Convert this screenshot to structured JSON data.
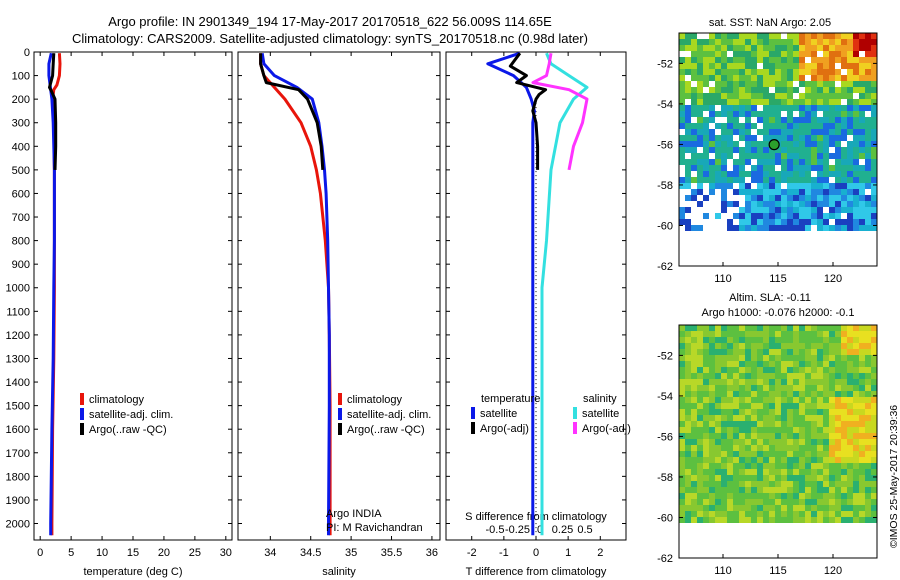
{
  "titles": {
    "line1": "Argo profile: IN 2901349_194 17-May-2017 20170518_622 56.009S 114.65E",
    "line2": "Climatology: CARS2009. Satellite-adjusted climatology: synTS_20170518.nc (0.98d later)"
  },
  "colors": {
    "climatology": "#e8150b",
    "satellite": "#0b18e8",
    "argo": "#000000",
    "sal_satellite": "#33e0e0",
    "sal_argo": "#ff33ff"
  },
  "chart_data": [
    {
      "type": "line",
      "id": "temperature",
      "xlabel": "temperature (deg C)",
      "ylabel": "",
      "xlim": [
        -1,
        31
      ],
      "ylim": [
        2070,
        0
      ],
      "xticks": [
        0,
        5,
        10,
        15,
        20,
        25,
        30
      ],
      "yticks": [
        0,
        100,
        200,
        300,
        400,
        500,
        600,
        700,
        800,
        900,
        1000,
        1100,
        1200,
        1300,
        1400,
        1500,
        1600,
        1700,
        1800,
        1900,
        2000
      ],
      "legend": [
        "climatology",
        "satellite-adj. clim.",
        "Argo(..raw -QC)"
      ],
      "series": [
        {
          "name": "climatology",
          "color_key": "climatology",
          "depth": [
            5,
            50,
            100,
            140,
            160,
            200,
            300,
            500,
            800,
            1000,
            1300,
            1600,
            2000,
            2050
          ],
          "values": [
            3.1,
            3.2,
            3.1,
            2.7,
            2.2,
            2.0,
            2.2,
            2.3,
            2.3,
            2.3,
            2.2,
            2.0,
            1.9,
            1.9
          ]
        },
        {
          "name": "satellite-adj. clim.",
          "color_key": "satellite",
          "depth": [
            5,
            50,
            100,
            140,
            160,
            200,
            300,
            500,
            800,
            1000,
            1300,
            1600,
            2000,
            2050
          ],
          "values": [
            1.8,
            1.4,
            1.4,
            1.6,
            1.7,
            1.9,
            2.1,
            2.3,
            2.3,
            2.2,
            2.1,
            1.9,
            1.7,
            1.7
          ]
        },
        {
          "name": "Argo(..raw -QC)",
          "color_key": "argo",
          "depth": [
            5,
            50,
            100,
            150,
            170,
            200,
            300,
            400,
            500
          ],
          "values": [
            2.2,
            2.1,
            2.0,
            1.5,
            1.9,
            2.4,
            2.5,
            2.5,
            2.4
          ]
        }
      ]
    },
    {
      "type": "line",
      "id": "salinity",
      "xlabel": "salinity",
      "xlim": [
        33.6,
        36.1
      ],
      "ylim": [
        2070,
        0
      ],
      "xticks": [
        34,
        34.5,
        35,
        35.5,
        36
      ],
      "legend": [
        "climatology",
        "satellite-adj. clim.",
        "Argo(..raw -QC)"
      ],
      "series": [
        {
          "name": "climatology",
          "color_key": "climatology",
          "depth": [
            5,
            50,
            100,
            150,
            200,
            300,
            400,
            500,
            600,
            800,
            1000,
            1200,
            1500,
            2000,
            2050
          ],
          "values": [
            33.88,
            33.88,
            33.92,
            34.05,
            34.18,
            34.38,
            34.5,
            34.57,
            34.62,
            34.68,
            34.72,
            34.73,
            34.74,
            34.74,
            34.74
          ]
        },
        {
          "name": "satellite-adj. clim.",
          "color_key": "satellite",
          "depth": [
            5,
            50,
            100,
            150,
            200,
            300,
            400,
            500,
            600,
            800,
            1000,
            1200,
            1500,
            2000,
            2050
          ],
          "values": [
            33.9,
            33.92,
            34.05,
            34.33,
            34.52,
            34.6,
            34.64,
            34.67,
            34.69,
            34.71,
            34.72,
            34.73,
            34.73,
            34.72,
            34.72
          ]
        },
        {
          "name": "Argo(..raw -QC)",
          "color_key": "argo",
          "depth": [
            5,
            50,
            100,
            130,
            160,
            200,
            300,
            400,
            500
          ],
          "values": [
            33.88,
            33.88,
            33.92,
            33.95,
            34.35,
            34.46,
            34.58,
            34.63,
            34.65
          ]
        }
      ]
    },
    {
      "type": "line",
      "id": "difference",
      "xlabel": "T difference from climatology",
      "xlabel_top": "S difference from climatology",
      "xlim": [
        -2.8,
        2.8
      ],
      "xticks": [
        -2,
        -1,
        0,
        1,
        2
      ],
      "xticks_salinity": [
        -0.5,
        -0.25,
        0,
        0.25,
        0.5
      ],
      "ylim": [
        2070,
        0
      ],
      "legend_headers": [
        "temperature",
        "salinity"
      ],
      "legend": [
        "satellite",
        "Argo(-adj)",
        "satellite",
        "Argo(-adj)"
      ],
      "series": [
        {
          "name": "satellite",
          "color_key": "satellite",
          "depth": [
            5,
            50,
            100,
            150,
            200,
            250,
            300,
            400,
            500,
            700,
            1000,
            1500,
            2000,
            2050
          ],
          "values": [
            -0.5,
            -1.5,
            -0.7,
            -0.3,
            -0.15,
            -0.05,
            -0.1,
            -0.1,
            -0.1,
            -0.1,
            -0.1,
            -0.1,
            -0.1,
            -0.1
          ]
        },
        {
          "name": "Argo(-adj)",
          "color_key": "argo",
          "depth": [
            5,
            60,
            100,
            130,
            160,
            180,
            200,
            250,
            300,
            400,
            500
          ],
          "values": [
            -0.5,
            -0.8,
            -0.3,
            -0.6,
            0.3,
            0.1,
            0.0,
            -0.1,
            0.0,
            0.05,
            0.05
          ]
        },
        {
          "name": "satellite",
          "color_key": "sal_satellite",
          "depth": [
            5,
            50,
            100,
            150,
            200,
            300,
            500,
            800,
            1000,
            1500,
            2000,
            2050
          ],
          "values": [
            0.05,
            0.1,
            0.3,
            0.5,
            0.35,
            0.2,
            0.1,
            0.05,
            0.0,
            0.0,
            0.0,
            0.0
          ]
        },
        {
          "name": "Argo(-adj)",
          "color_key": "sal_argo",
          "depth": [
            5,
            50,
            100,
            130,
            160,
            200,
            300,
            400,
            500
          ],
          "values": [
            0.1,
            0.08,
            0.05,
            -0.1,
            0.3,
            0.5,
            0.45,
            0.35,
            0.3
          ]
        }
      ]
    },
    {
      "type": "heatmap",
      "id": "sst_map",
      "title": "sat. SST: NaN Argo: 2.05",
      "xlim": [
        106,
        124
      ],
      "ylim": [
        -62,
        -50.5
      ],
      "xticks": [
        110,
        115,
        120
      ],
      "yticks": [
        -52,
        -54,
        -56,
        -58,
        -60,
        -62
      ],
      "data_ylim": [
        -60,
        -50.5
      ],
      "marker": {
        "lon": 114.65,
        "lat": -56.009
      }
    },
    {
      "type": "heatmap",
      "id": "sla_map",
      "title": "Altim. SLA: -0.11",
      "subtitle": "Argo h1000: -0.076 h2000: -0.1",
      "xlim": [
        106,
        124
      ],
      "ylim": [
        -62,
        -50.5
      ],
      "xticks": [
        110,
        115,
        120
      ],
      "yticks": [
        -52,
        -54,
        -56,
        -58,
        -60,
        -62
      ],
      "data_ylim": [
        -60,
        -50.5
      ]
    }
  ],
  "notes": {
    "float_line1": "Argo INDIA",
    "float_line2": "PI: M Ravichandran",
    "stamp": "©IMOS 25-May-2017 20:39:36"
  }
}
